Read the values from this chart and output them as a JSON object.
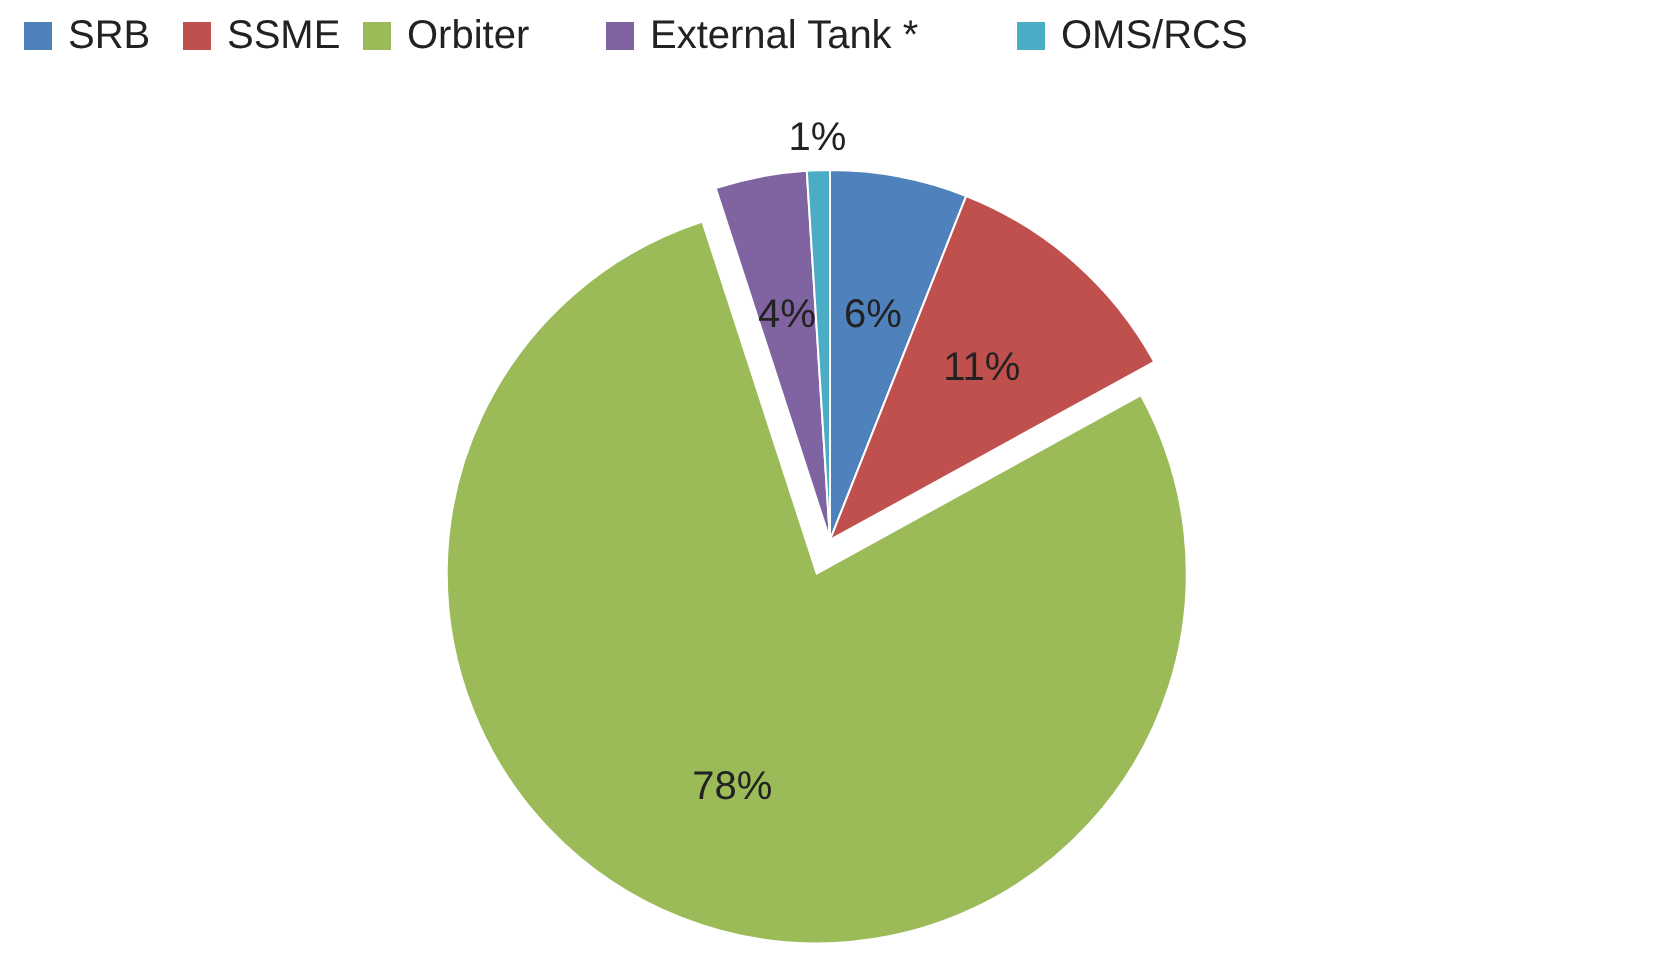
{
  "chart_data": {
    "type": "pie",
    "categories": [
      "SRB",
      "SSME",
      "Orbiter",
      "External Tank *",
      "OMS/RCS"
    ],
    "values": [
      6,
      11,
      78,
      4,
      1
    ],
    "colors": [
      "#4f81bd",
      "#c0504d",
      "#9bbb59",
      "#8064a2",
      "#4bacc6"
    ],
    "value_labels": [
      "6%",
      "11%",
      "78%",
      "4%",
      "1%"
    ],
    "legend": "top"
  }
}
